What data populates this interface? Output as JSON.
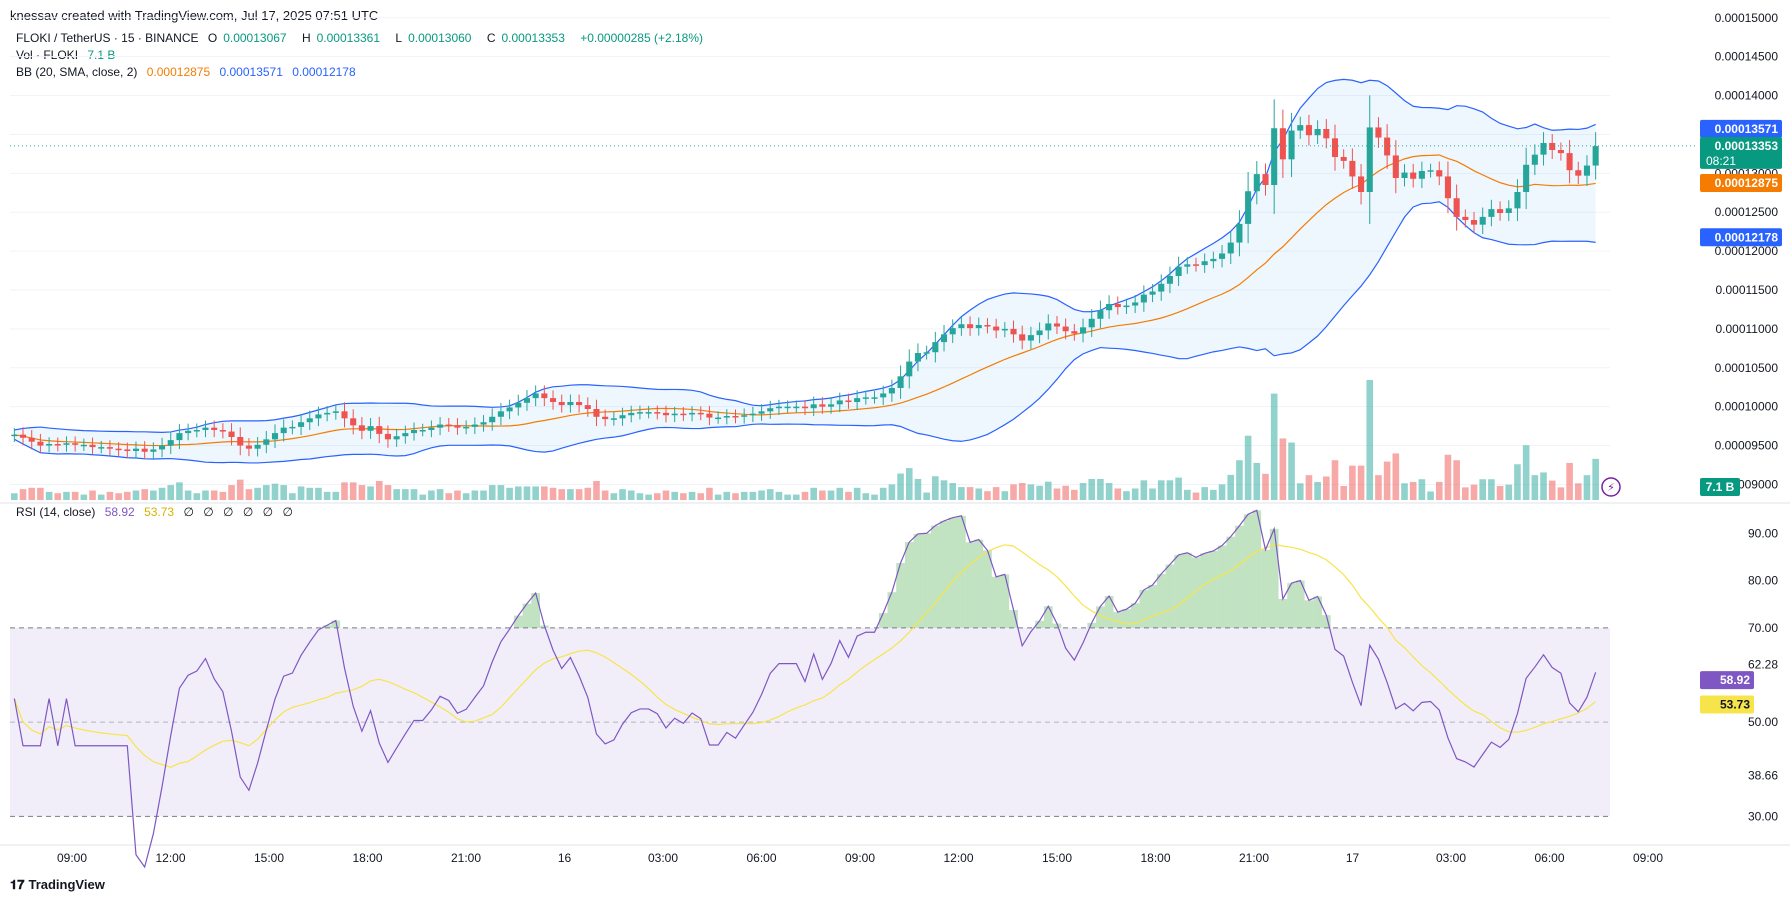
{
  "header": {
    "attribution": "knessav created with TradingView.com, Jul 17, 2025 07:51 UTC"
  },
  "legend": {
    "symbol": "FLOKI / TetherUS · 15 · BINANCE",
    "open_label": "O",
    "open": "0.00013067",
    "high_label": "H",
    "high": "0.00013361",
    "low_label": "L",
    "low": "0.00013060",
    "close_label": "C",
    "close": "0.00013353",
    "change": "+0.00000285 (+2.18%)",
    "vol_label": "Vol · FLOKI",
    "vol_value": "7.1 B",
    "bb_label": "BB (20, SMA, close, 2)",
    "bb_basis": "0.00012875",
    "bb_upper": "0.00013571",
    "bb_lower": "0.00012178"
  },
  "rsi_legend": {
    "label": "RSI (14, close)",
    "rsi": "58.92",
    "ma": "53.73",
    "extras": [
      "∅",
      "∅",
      "∅",
      "∅",
      "∅",
      "∅"
    ]
  },
  "brand": {
    "name": "TradingView"
  },
  "colors": {
    "up": "#26a69a",
    "down": "#ef5350",
    "bb_band": "#2962ff",
    "bb_basis": "#f57c00",
    "rsi": "#7e57c2",
    "rsi_ma": "#f7e44a"
  },
  "chart_data": [
    {
      "type": "candlestick",
      "title": "FLOKI / TetherUS · 15 · BINANCE",
      "price_ticks": [
        "0.00015000",
        "0.00014500",
        "0.00014000",
        "0.00013500",
        "0.00013000",
        "0.00012500",
        "0.00012000",
        "0.00011500",
        "0.00011000",
        "0.00010500",
        "0.00010000",
        "0.00009500",
        "0.00009000"
      ],
      "ylim": [
        8.8e-05,
        0.000151
      ],
      "time_ticks": [
        "09:00",
        "12:00",
        "15:00",
        "18:00",
        "21:00",
        "16",
        "03:00",
        "06:00",
        "09:00",
        "12:00",
        "15:00",
        "18:00",
        "21:00",
        "17",
        "03:00",
        "06:00",
        "09:00"
      ],
      "close_series": [
        9.64e-05,
        9.6e-05,
        9.55e-05,
        9.5e-05,
        9.52e-05,
        9.51e-05,
        9.53e-05,
        9.51e-05,
        9.51e-05,
        9.48e-05,
        9.48e-05,
        9.46e-05,
        9.45e-05,
        9.43e-05,
        9.46e-05,
        9.42e-05,
        9.45e-05,
        9.5e-05,
        9.57e-05,
        9.66e-05,
        9.69e-05,
        9.7e-05,
        9.73e-05,
        9.7e-05,
        9.68e-05,
        9.61e-05,
        9.5e-05,
        9.46e-05,
        9.51e-05,
        9.58e-05,
        9.66e-05,
        9.73e-05,
        9.74e-05,
        9.8e-05,
        9.85e-05,
        9.9e-05,
        9.92e-05,
        9.94e-05,
        9.85e-05,
        9.76e-05,
        9.69e-05,
        9.75e-05,
        9.65e-05,
        9.58e-05,
        9.62e-05,
        9.66e-05,
        9.7e-05,
        9.7e-05,
        9.73e-05,
        9.77e-05,
        9.76e-05,
        9.73e-05,
        9.74e-05,
        9.77e-05,
        9.8e-05,
        9.87e-05,
        9.94e-05,
        9.99e-05,
        0.0001005,
        0.0001011,
        0.0001017,
        0.0001011,
        0.0001006,
        0.0001002,
        0.0001006,
        0.0001002,
        9.97e-05,
        9.87e-05,
        9.84e-05,
        9.85e-05,
        9.89e-05,
        9.92e-05,
        9.93e-05,
        9.93e-05,
        9.92e-05,
        9.89e-05,
        9.91e-05,
        9.9e-05,
        9.92e-05,
        9.91e-05,
        9.86e-05,
        9.86e-05,
        9.88e-05,
        9.87e-05,
        9.89e-05,
        9.91e-05,
        9.94e-05,
        9.98e-05,
        0.0001,
        0.0001,
        0.0001,
        9.98e-05,
        0.0001003,
        0.0001,
        0.0001003,
        0.0001008,
        0.0001006,
        0.0001011,
        0.0001012,
        0.0001012,
        0.0001017,
        0.0001024,
        0.0001039,
        0.0001058,
        0.0001069,
        0.000107,
        0.0001083,
        0.0001093,
        0.0001101,
        0.0001106,
        0.0001101,
        0.0001105,
        0.0001103,
        0.0001098,
        0.00011,
        0.0001093,
        0.0001085,
        0.0001092,
        0.0001098,
        0.0001107,
        0.0001103,
        0.0001097,
        0.0001094,
        0.0001102,
        0.0001113,
        0.0001124,
        0.0001132,
        0.0001128,
        0.000113,
        0.0001134,
        0.0001144,
        0.0001148,
        0.0001158,
        0.0001168,
        0.000118,
        0.0001183,
        0.0001182,
        0.0001187,
        0.000119,
        0.0001197,
        0.0001211,
        0.0001235,
        0.0001277,
        0.0001299,
        0.0001285,
        0.0001358,
        0.0001318,
        0.0001355,
        0.0001362,
        0.0001349,
        0.0001357,
        0.0001345,
        0.0001321,
        0.0001316,
        0.0001296,
        0.0001276,
        0.0001359,
        0.0001346,
        0.0001323,
        0.0001294,
        0.0001301,
        0.0001293,
        0.0001303,
        0.0001304,
        0.0001296,
        0.0001268,
        0.0001244,
        0.000124,
        0.0001234,
        0.0001244,
        0.0001254,
        0.0001249,
        0.0001255,
        0.0001276,
        0.0001311,
        0.0001324,
        0.0001339,
        0.000133,
        0.0001326,
        0.0001304,
        0.0001297,
        0.000131,
        0.0001335
      ],
      "bb_upper_last": 0.00013571,
      "bb_basis_last": 0.00012875,
      "bb_lower_last": 0.00012178,
      "last_price": "0.00013353",
      "countdown": "08:21",
      "price_labels": {
        "upper": "0.00013571",
        "basis": "0.00012875",
        "lower": "0.00012178",
        "vol": "7.1 B"
      }
    },
    {
      "type": "line",
      "title": "RSI (14, close)",
      "ticks": [
        "90.00",
        "80.00",
        "70.00",
        "62.28",
        "50.00",
        "38.66",
        "30.00"
      ],
      "ylim": [
        25,
        95
      ],
      "overbought": 70,
      "oversold": 30,
      "mid": 50,
      "last_rsi": "58.92",
      "last_ma": "53.73"
    }
  ]
}
